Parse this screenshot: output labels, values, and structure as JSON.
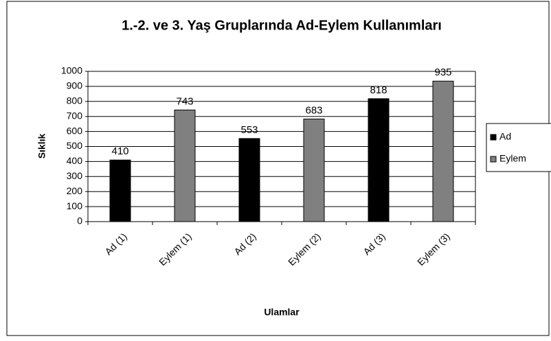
{
  "chart_data": {
    "type": "bar",
    "title": "1.-2. ve 3. Yaş Gruplarında Ad-Eylem Kullanımları",
    "x_label": "Ulamlar",
    "y_label": "Sıklık",
    "categories": [
      "Ad (1)",
      "Eylem (1)",
      "Ad (2)",
      "Eylem (2)",
      "Ad (3)",
      "Eylem (3)"
    ],
    "series": [
      {
        "name": "Ad",
        "color": "#000000",
        "values": [
          410,
          null,
          553,
          null,
          818,
          null
        ]
      },
      {
        "name": "Eylem",
        "color": "#808080",
        "values": [
          null,
          743,
          null,
          683,
          null,
          935
        ]
      }
    ],
    "ylim": [
      0,
      1000
    ],
    "yticks": [
      0,
      100,
      200,
      300,
      400,
      500,
      600,
      700,
      800,
      900,
      1000
    ],
    "grid": true,
    "legend": "right"
  }
}
